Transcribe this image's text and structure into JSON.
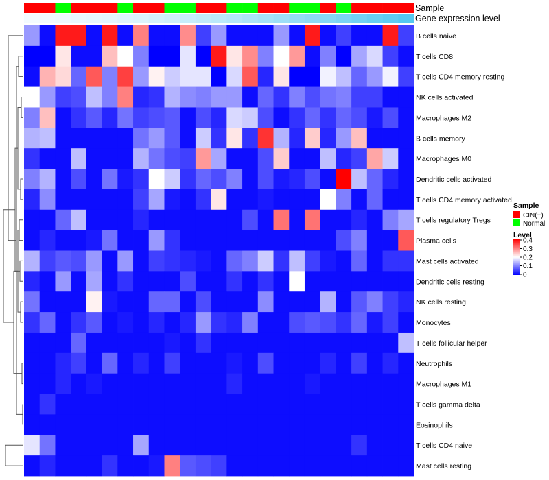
{
  "chart_data": {
    "type": "heatmap",
    "annotations": {
      "sample_title": "Sample",
      "gene_title": "Gene expression level",
      "sample": [
        "CIN(+)",
        "CIN(+)",
        "Normal",
        "CIN(+)",
        "CIN(+)",
        "CIN(+)",
        "Normal",
        "CIN(+)",
        "CIN(+)",
        "Normal",
        "Normal",
        "CIN(+)",
        "CIN(+)",
        "Normal",
        "Normal",
        "CIN(+)",
        "CIN(+)",
        "Normal",
        "Normal",
        "CIN(+)",
        "Normal",
        "CIN(+)",
        "CIN(+)",
        "CIN(+)",
        "CIN(+)"
      ],
      "gene_expression_level": [
        0.0,
        0.02,
        0.04,
        0.06,
        0.08,
        0.1,
        0.13,
        0.16,
        0.2,
        0.24,
        0.28,
        0.32,
        0.36,
        0.4,
        0.45,
        0.5,
        0.55,
        0.6,
        0.65,
        0.7,
        0.76,
        0.82,
        0.88,
        0.94,
        1.0
      ]
    },
    "rows": [
      "B cells naive",
      "T cells CD8",
      "T cells CD4 memory resting",
      "NK cells activated",
      "Macrophages M2",
      "B cells memory",
      "Macrophages M0",
      "Dendritic cells activated",
      "T cells CD4 memory activated",
      "T cells regulatory  Tregs",
      "Plasma cells",
      "Mast cells activated",
      "Dendritic cells resting",
      "NK cells resting",
      "Monocytes",
      "T cells follicular helper",
      "Neutrophils",
      "Macrophages M1",
      "T cells gamma delta",
      "Eosinophils",
      "T cells CD4 naive",
      "Mast cells resting"
    ],
    "values": [
      [
        0.12,
        0.01,
        0.38,
        0.38,
        0.01,
        0.38,
        0.01,
        0.3,
        0.01,
        0.01,
        0.29,
        0.05,
        0.12,
        0.01,
        0.01,
        0.01,
        0.12,
        0.01,
        0.38,
        0.01,
        0.05,
        0.01,
        0.01,
        0.38,
        0.05
      ],
      [
        0.0,
        0.0,
        0.22,
        0.01,
        0.01,
        0.25,
        0.2,
        0.1,
        0.0,
        0.0,
        0.18,
        0.0,
        0.38,
        0.22,
        0.29,
        0.1,
        0.2,
        0.28,
        0.01,
        0.1,
        0.0,
        0.13,
        0.17,
        0.05,
        0.01
      ],
      [
        0.01,
        0.26,
        0.23,
        0.08,
        0.33,
        0.1,
        0.35,
        0.12,
        0.21,
        0.16,
        0.18,
        0.18,
        0.0,
        0.17,
        0.33,
        0.03,
        0.22,
        0.0,
        0.0,
        0.19,
        0.15,
        0.08,
        0.12,
        0.19,
        0.05
      ],
      [
        0.2,
        0.12,
        0.05,
        0.06,
        0.15,
        0.1,
        0.3,
        0.03,
        0.04,
        0.14,
        0.11,
        0.1,
        0.12,
        0.12,
        0.01,
        0.08,
        0.04,
        0.1,
        0.06,
        0.09,
        0.1,
        0.05,
        0.05,
        0.01,
        0.01
      ],
      [
        0.1,
        0.25,
        0.01,
        0.04,
        0.07,
        0.03,
        0.09,
        0.05,
        0.06,
        0.07,
        0.01,
        0.06,
        0.03,
        0.17,
        0.16,
        0.06,
        0.01,
        0.04,
        0.08,
        0.04,
        0.08,
        0.06,
        0.02,
        0.06,
        0.01
      ],
      [
        0.14,
        0.15,
        0.01,
        0.01,
        0.01,
        0.01,
        0.01,
        0.09,
        0.12,
        0.07,
        0.01,
        0.16,
        0.04,
        0.22,
        0.04,
        0.36,
        0.14,
        0.03,
        0.24,
        0.03,
        0.12,
        0.25,
        0.01,
        0.01,
        0.01
      ],
      [
        0.04,
        0.01,
        0.01,
        0.15,
        0.01,
        0.01,
        0.01,
        0.14,
        0.09,
        0.06,
        0.05,
        0.28,
        0.13,
        0.01,
        0.01,
        0.06,
        0.24,
        0.01,
        0.01,
        0.15,
        0.03,
        0.05,
        0.27,
        0.16,
        0.01
      ],
      [
        0.1,
        0.14,
        0.01,
        0.06,
        0.01,
        0.09,
        0.02,
        0.04,
        0.2,
        0.16,
        0.04,
        0.08,
        0.06,
        0.1,
        0.01,
        0.06,
        0.02,
        0.03,
        0.06,
        0.01,
        0.4,
        0.15,
        0.08,
        0.03,
        0.01
      ],
      [
        0.03,
        0.11,
        0.01,
        0.01,
        0.01,
        0.01,
        0.01,
        0.05,
        0.13,
        0.02,
        0.01,
        0.04,
        0.22,
        0.01,
        0.01,
        0.02,
        0.01,
        0.01,
        0.01,
        0.2,
        0.1,
        0.01,
        0.08,
        0.01,
        0.01
      ],
      [
        0.01,
        0.01,
        0.08,
        0.15,
        0.01,
        0.01,
        0.01,
        0.03,
        0.01,
        0.01,
        0.01,
        0.01,
        0.01,
        0.01,
        0.06,
        0.01,
        0.31,
        0.01,
        0.31,
        0.01,
        0.01,
        0.03,
        0.01,
        0.1,
        0.13
      ],
      [
        0.01,
        0.03,
        0.01,
        0.01,
        0.02,
        0.09,
        0.01,
        0.01,
        0.12,
        0.04,
        0.01,
        0.01,
        0.01,
        0.01,
        0.01,
        0.01,
        0.01,
        0.01,
        0.01,
        0.01,
        0.06,
        0.1,
        0.01,
        0.01,
        0.33
      ],
      [
        0.14,
        0.05,
        0.07,
        0.06,
        0.12,
        0.01,
        0.12,
        0.01,
        0.05,
        0.04,
        0.03,
        0.02,
        0.01,
        0.08,
        0.1,
        0.16,
        0.04,
        0.15,
        0.05,
        0.02,
        0.01,
        0.08,
        0.01,
        0.04,
        0.04
      ],
      [
        0.03,
        0.01,
        0.12,
        0.01,
        0.13,
        0.01,
        0.04,
        0.01,
        0.01,
        0.01,
        0.06,
        0.01,
        0.01,
        0.04,
        0.01,
        0.04,
        0.01,
        0.2,
        0.01,
        0.01,
        0.01,
        0.01,
        0.01,
        0.01,
        0.01
      ],
      [
        0.09,
        0.01,
        0.01,
        0.01,
        0.21,
        0.02,
        0.01,
        0.01,
        0.08,
        0.08,
        0.01,
        0.06,
        0.01,
        0.01,
        0.01,
        0.11,
        0.01,
        0.01,
        0.01,
        0.14,
        0.01,
        0.07,
        0.1,
        0.05,
        0.03
      ],
      [
        0.04,
        0.08,
        0.01,
        0.04,
        0.07,
        0.01,
        0.02,
        0.01,
        0.03,
        0.01,
        0.03,
        0.12,
        0.04,
        0.03,
        0.1,
        0.01,
        0.01,
        0.06,
        0.07,
        0.06,
        0.04,
        0.08,
        0.02,
        0.05,
        0.01
      ],
      [
        0.01,
        0.01,
        0.01,
        0.08,
        0.01,
        0.01,
        0.01,
        0.01,
        0.01,
        0.02,
        0.01,
        0.04,
        0.01,
        0.01,
        0.01,
        0.01,
        0.01,
        0.01,
        0.01,
        0.01,
        0.01,
        0.01,
        0.01,
        0.01,
        0.15
      ],
      [
        0.01,
        0.01,
        0.03,
        0.05,
        0.01,
        0.08,
        0.01,
        0.03,
        0.01,
        0.05,
        0.01,
        0.01,
        0.01,
        0.02,
        0.01,
        0.06,
        0.01,
        0.01,
        0.01,
        0.03,
        0.01,
        0.05,
        0.01,
        0.03,
        0.01
      ],
      [
        0.01,
        0.01,
        0.03,
        0.01,
        0.02,
        0.01,
        0.01,
        0.01,
        0.01,
        0.01,
        0.01,
        0.01,
        0.01,
        0.03,
        0.01,
        0.01,
        0.01,
        0.01,
        0.02,
        0.01,
        0.01,
        0.01,
        0.01,
        0.01,
        0.01
      ],
      [
        0.01,
        0.04,
        0.01,
        0.01,
        0.01,
        0.01,
        0.01,
        0.01,
        0.01,
        0.01,
        0.01,
        0.01,
        0.01,
        0.01,
        0.01,
        0.01,
        0.01,
        0.01,
        0.01,
        0.01,
        0.01,
        0.01,
        0.01,
        0.01,
        0.01
      ],
      [
        0.01,
        0.01,
        0.01,
        0.01,
        0.01,
        0.01,
        0.01,
        0.01,
        0.01,
        0.01,
        0.01,
        0.01,
        0.01,
        0.01,
        0.01,
        0.01,
        0.01,
        0.01,
        0.01,
        0.01,
        0.01,
        0.01,
        0.01,
        0.01,
        0.01
      ],
      [
        0.18,
        0.09,
        0.01,
        0.01,
        0.01,
        0.01,
        0.01,
        0.13,
        0.01,
        0.01,
        0.01,
        0.01,
        0.01,
        0.01,
        0.01,
        0.01,
        0.01,
        0.01,
        0.01,
        0.01,
        0.01,
        0.04,
        0.01,
        0.01,
        0.01
      ],
      [
        0.01,
        0.03,
        0.01,
        0.01,
        0.01,
        0.04,
        0.01,
        0.01,
        0.02,
        0.3,
        0.07,
        0.06,
        0.05,
        0.01,
        0.01,
        0.01,
        0.01,
        0.01,
        0.01,
        0.01,
        0.01,
        0.01,
        0.01,
        0.01,
        0.01
      ]
    ],
    "color_scale": {
      "min": 0,
      "max": 0.4,
      "stops": [
        [
          0,
          "#0000ff"
        ],
        [
          0.2,
          "#ffffff"
        ],
        [
          0.4,
          "#ff0000"
        ]
      ]
    },
    "legend": {
      "sample_title": "Sample",
      "sample_items": [
        {
          "label": "CIN(+)",
          "color": "#ff0000"
        },
        {
          "label": "Normal",
          "color": "#00ff00"
        }
      ],
      "level_title": "Level",
      "level_ticks": [
        "0.4",
        "0.3",
        "0.2",
        "0.1",
        "0"
      ]
    },
    "colors": {
      "CIN(+)": "#ff0000",
      "Normal": "#00ff00",
      "gene_low": "#f4fbff",
      "gene_high": "#55c8f0"
    },
    "title": "",
    "xlabel": "",
    "ylabel": ""
  }
}
